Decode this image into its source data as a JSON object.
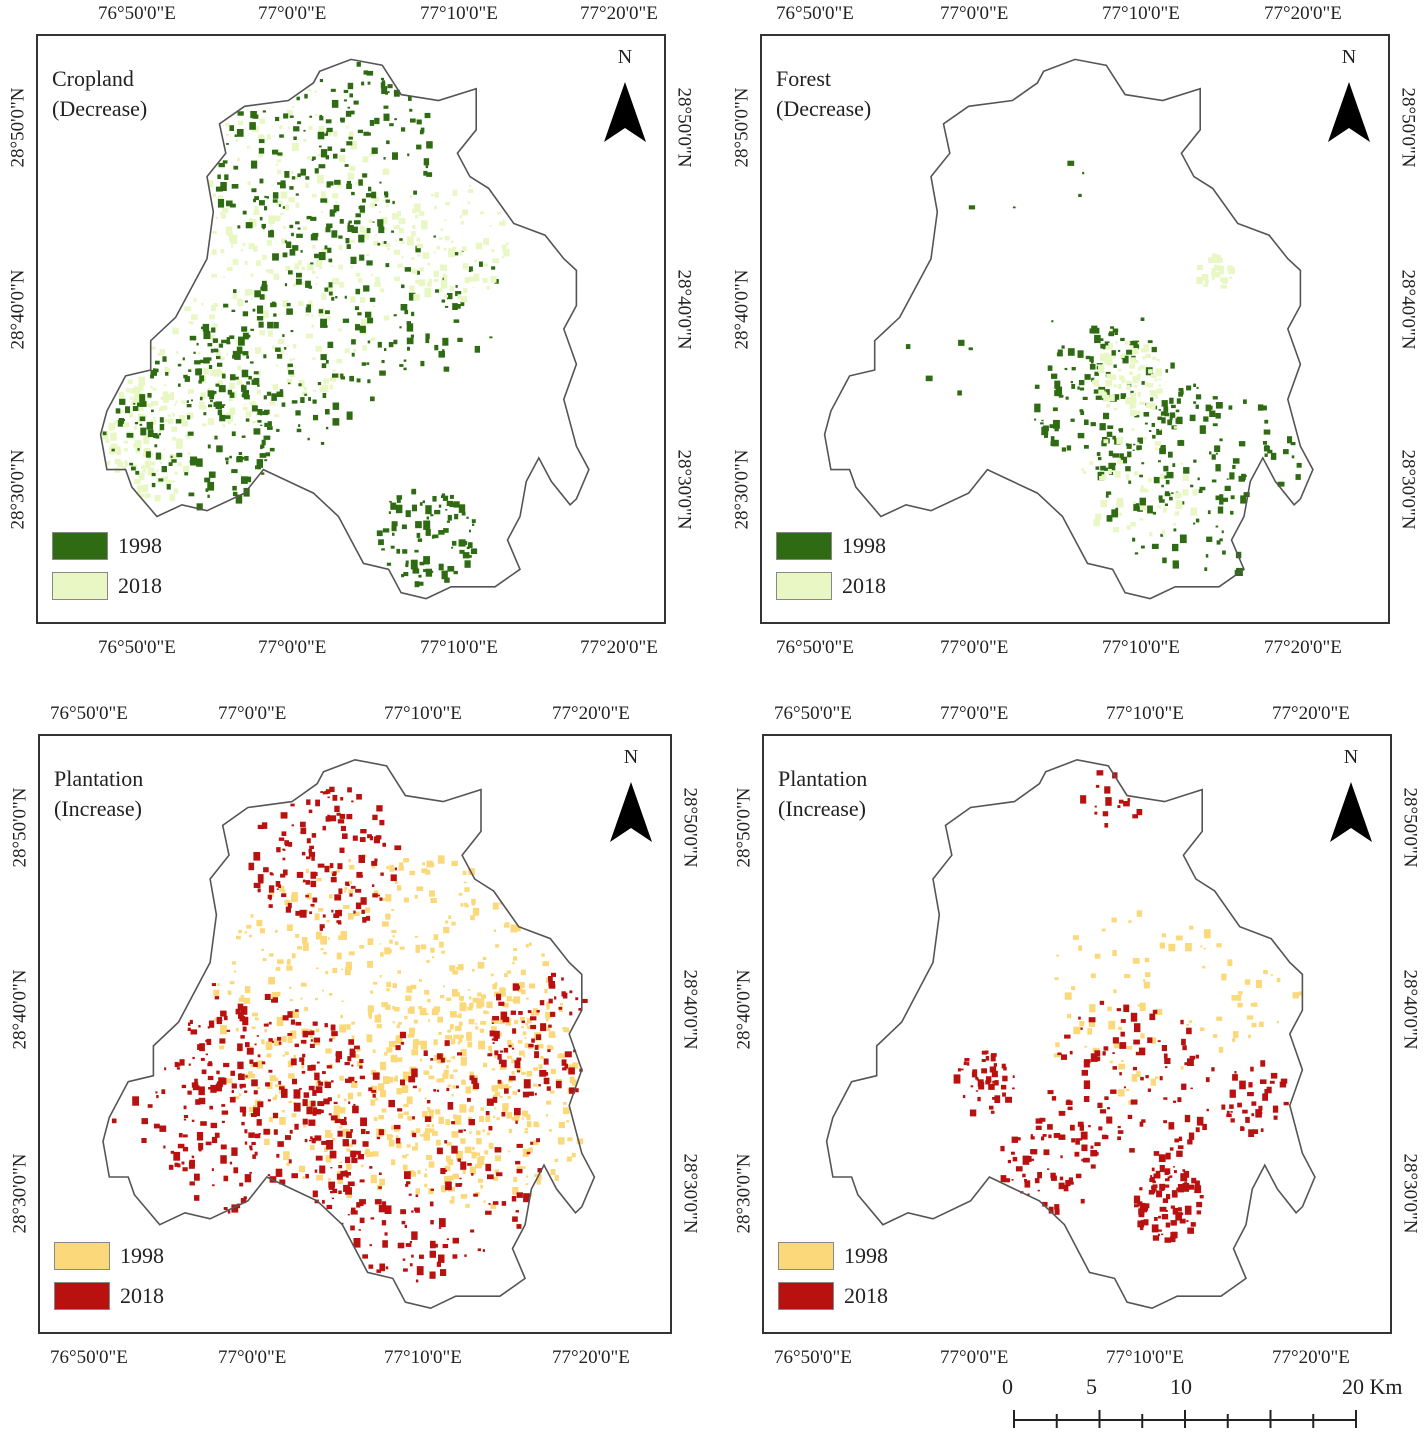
{
  "lon_labels": [
    "76°50'0\"E",
    "77°0'0\"E",
    "77°10'0\"E",
    "77°20'0\"E"
  ],
  "lat_labels": [
    "28°50'0\"N",
    "28°40'0\"N",
    "28°30'0\"N"
  ],
  "north_label": "N",
  "panels": [
    {
      "title_line1": "Cropland",
      "title_line2": "(Decrease)",
      "legend": [
        {
          "label": "1998",
          "color": "#2e6b12"
        },
        {
          "label": "2018",
          "color": "#e8f7c4"
        }
      ]
    },
    {
      "title_line1": "Forest",
      "title_line2": "(Decrease)",
      "legend": [
        {
          "label": "1998",
          "color": "#2e6b12"
        },
        {
          "label": "2018",
          "color": "#e8f7c4"
        }
      ]
    },
    {
      "title_line1": "Plantation",
      "title_line2": "(Increase)",
      "legend": [
        {
          "label": "1998",
          "color": "#fbd97a"
        },
        {
          "label": "2018",
          "color": "#b8110f"
        }
      ]
    },
    {
      "title_line1": "Plantation",
      "title_line2": "(Increase)",
      "legend": [
        {
          "label": "1998",
          "color": "#fbd97a"
        },
        {
          "label": "2018",
          "color": "#b8110f"
        }
      ]
    }
  ],
  "scale_bar": {
    "labels": [
      "0",
      "5",
      "10",
      "20 Km"
    ]
  },
  "colors": {
    "boundary": "#555555",
    "frame": "#333333"
  }
}
